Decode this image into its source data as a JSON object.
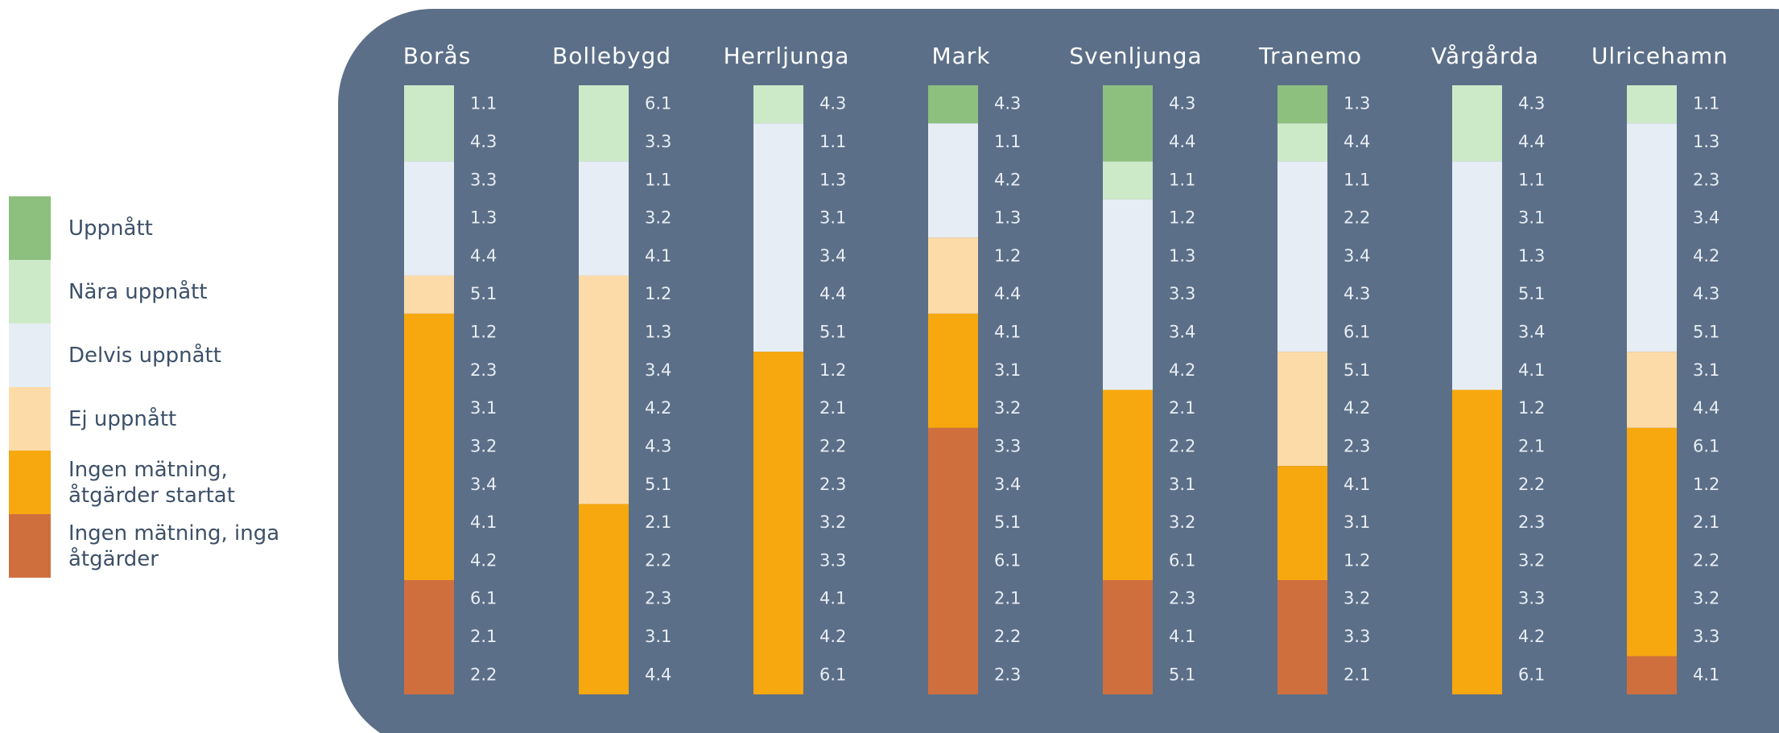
{
  "chart_data": {
    "type": "stacked_bar",
    "categories": [
      "Borås",
      "Bollebygd",
      "Herrljunga",
      "Mark",
      "Svenljunga",
      "Tranemo",
      "Vårgårda",
      "Ulricehamn"
    ],
    "series": [
      {
        "name": "Uppnått",
        "color": "#8dbf7e",
        "values": [
          0,
          0,
          0,
          1,
          2,
          1,
          0,
          0
        ]
      },
      {
        "name": "Nära uppnått",
        "color": "#cdeac8",
        "values": [
          2,
          2,
          1,
          0,
          1,
          1,
          2,
          1
        ]
      },
      {
        "name": "Delvis uppnått",
        "color": "#e6edf5",
        "values": [
          3,
          3,
          6,
          3,
          5,
          5,
          6,
          6
        ]
      },
      {
        "name": "Ej uppnått",
        "color": "#fddba8",
        "values": [
          1,
          6,
          0,
          2,
          0,
          3,
          0,
          2
        ]
      },
      {
        "name": "Ingen mätning, åtgärder startat",
        "color": "#f6a80e",
        "values": [
          7,
          5,
          9,
          3,
          5,
          3,
          8,
          6
        ]
      },
      {
        "name": "Ingen mätning, inga åtgärder",
        "color": "#d06f3e",
        "values": [
          3,
          0,
          0,
          7,
          3,
          3,
          0,
          1
        ]
      }
    ],
    "item_labels": [
      [
        "1.1",
        "4.3",
        "3.3",
        "1.3",
        "4.4",
        "5.1",
        "1.2",
        "2.3",
        "3.1",
        "3.2",
        "3.4",
        "4.1",
        "4.2",
        "6.1",
        "2.1",
        "2.2"
      ],
      [
        "6.1",
        "3.3",
        "1.1",
        "3.2",
        "4.1",
        "1.2",
        "1.3",
        "3.4",
        "4.2",
        "4.3",
        "5.1",
        "2.1",
        "2.2",
        "2.3",
        "3.1",
        "4.4"
      ],
      [
        "4.3",
        "1.1",
        "1.3",
        "3.1",
        "3.4",
        "4.4",
        "5.1",
        "1.2",
        "2.1",
        "2.2",
        "2.3",
        "3.2",
        "3.3",
        "4.1",
        "4.2",
        "6.1"
      ],
      [
        "4.3",
        "1.1",
        "4.2",
        "1.3",
        "1.2",
        "4.4",
        "4.1",
        "3.1",
        "3.2",
        "3.3",
        "3.4",
        "5.1",
        "6.1",
        "2.1",
        "2.2",
        "2.3"
      ],
      [
        "4.3",
        "4.4",
        "1.1",
        "1.2",
        "1.3",
        "3.3",
        "3.4",
        "4.2",
        "2.1",
        "2.2",
        "3.1",
        "3.2",
        "6.1",
        "2.3",
        "4.1",
        "5.1"
      ],
      [
        "1.3",
        "4.4",
        "1.1",
        "2.2",
        "3.4",
        "4.3",
        "6.1",
        "5.1",
        "4.2",
        "2.3",
        "4.1",
        "3.1",
        "1.2",
        "3.2",
        "3.3",
        "2.1"
      ],
      [
        "4.3",
        "4.4",
        "1.1",
        "3.1",
        "1.3",
        "5.1",
        "3.4",
        "4.1",
        "1.2",
        "2.1",
        "2.2",
        "2.3",
        "3.2",
        "3.3",
        "4.2",
        "6.1"
      ],
      [
        "1.1",
        "1.3",
        "2.3",
        "3.4",
        "4.2",
        "4.3",
        "5.1",
        "3.1",
        "4.4",
        "6.1",
        "1.2",
        "2.1",
        "2.2",
        "3.2",
        "3.3",
        "4.1"
      ]
    ]
  }
}
